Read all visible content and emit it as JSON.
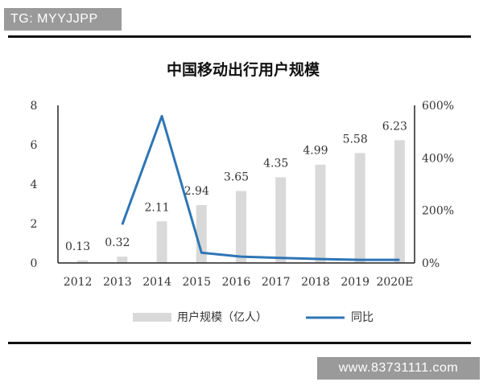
{
  "watermarks": {
    "top": "TG: MYYJJPP",
    "bottom": "www.83731111.com"
  },
  "chart_data": {
    "type": "bar",
    "title": "中国移动出行用户规模",
    "categories": [
      "2012",
      "2013",
      "2014",
      "2015",
      "2016",
      "2017",
      "2018",
      "2019",
      "2020E"
    ],
    "series": [
      {
        "name": "用户规模（亿人）",
        "type": "bar",
        "axis": "left",
        "color": "#d9d9d9",
        "values": [
          0.13,
          0.32,
          2.11,
          2.94,
          3.65,
          4.35,
          4.99,
          5.58,
          6.23
        ],
        "labels": [
          "0.13",
          "0.32",
          "2.11",
          "2.94",
          "3.65",
          "4.35",
          "4.99",
          "5.58",
          "6.23"
        ]
      },
      {
        "name": "同比",
        "type": "line",
        "axis": "right",
        "color": "#2e75b6",
        "values": [
          null,
          146,
          559,
          39,
          24,
          19,
          15,
          12,
          12
        ]
      }
    ],
    "y_left": {
      "min": 0,
      "max": 8,
      "ticks": [
        "0",
        "2",
        "4",
        "6",
        "8"
      ]
    },
    "y_right": {
      "min": 0,
      "max": 600,
      "ticks": [
        "0%",
        "200%",
        "400%",
        "600%"
      ]
    },
    "grid": false,
    "legend_position": "bottom"
  }
}
